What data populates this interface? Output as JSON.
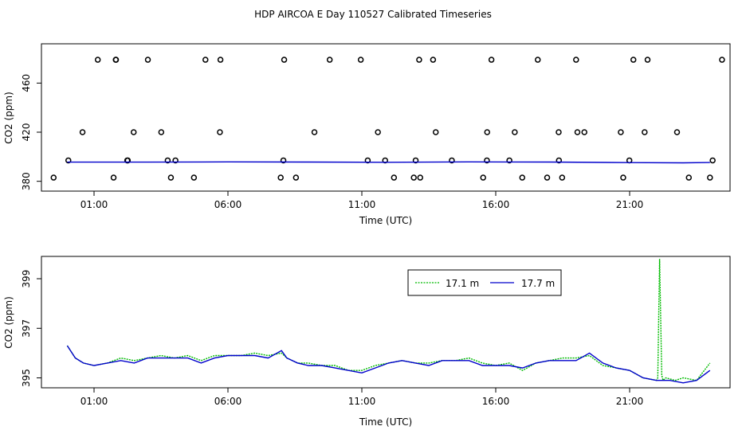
{
  "title": "HDP AIRCOA E  Day 110527  Calibrated Timeseries",
  "colors": {
    "blue": "#0000cc",
    "green": "#00bb00",
    "black": "#000000"
  },
  "chart_data": [
    {
      "type": "scatter",
      "xlabel": "Time (UTC)",
      "ylabel": "CO2 (ppm)",
      "x_unit": "hours UTC",
      "xlim": [
        0.0,
        24.0
      ],
      "ylim": [
        372,
        492
      ],
      "x_ticks": [
        1,
        6,
        11,
        16,
        21
      ],
      "x_tick_labels": [
        "01:00",
        "06:00",
        "11:00",
        "16:00",
        "21:00"
      ],
      "y_ticks": [
        380,
        420,
        460
      ],
      "y_tick_labels": [
        "380",
        "420",
        "460"
      ],
      "grid": false,
      "series": [
        {
          "kind": "points",
          "color": "#000000",
          "points": [
            [
              1.14,
              479
            ],
            [
              1.81,
              479
            ],
            [
              1.82,
              479
            ],
            [
              3.01,
              479
            ],
            [
              5.16,
              479
            ],
            [
              5.72,
              479
            ],
            [
              8.1,
              479
            ],
            [
              9.8,
              479
            ],
            [
              10.96,
              479
            ],
            [
              13.14,
              479
            ],
            [
              13.66,
              479
            ],
            [
              15.84,
              479
            ],
            [
              17.57,
              479
            ],
            [
              19.0,
              479
            ],
            [
              21.14,
              479
            ],
            [
              21.67,
              479
            ],
            [
              24.45,
              479
            ],
            [
              0.57,
              420
            ],
            [
              2.48,
              420
            ],
            [
              3.51,
              420
            ],
            [
              5.7,
              420
            ],
            [
              9.23,
              420
            ],
            [
              11.6,
              420
            ],
            [
              13.76,
              420
            ],
            [
              15.68,
              420
            ],
            [
              16.71,
              420
            ],
            [
              18.35,
              420
            ],
            [
              19.05,
              420
            ],
            [
              19.31,
              420
            ],
            [
              20.67,
              420
            ],
            [
              21.56,
              420
            ],
            [
              22.77,
              420
            ],
            [
              0.04,
              397
            ],
            [
              2.24,
              397
            ],
            [
              2.26,
              397
            ],
            [
              3.75,
              397
            ],
            [
              4.04,
              397
            ],
            [
              8.07,
              397
            ],
            [
              11.22,
              397
            ],
            [
              11.87,
              397
            ],
            [
              13.01,
              397
            ],
            [
              14.36,
              397
            ],
            [
              15.67,
              397
            ],
            [
              16.51,
              397
            ],
            [
              18.36,
              397
            ],
            [
              20.99,
              397
            ],
            [
              24.1,
              397
            ],
            [
              -0.51,
              383
            ],
            [
              1.73,
              383
            ],
            [
              3.87,
              383
            ],
            [
              4.73,
              383
            ],
            [
              7.97,
              383
            ],
            [
              8.54,
              383
            ],
            [
              12.2,
              383
            ],
            [
              12.94,
              383
            ],
            [
              13.18,
              383
            ],
            [
              15.53,
              383
            ],
            [
              16.99,
              383
            ],
            [
              17.92,
              383
            ],
            [
              18.48,
              383
            ],
            [
              20.76,
              383
            ],
            [
              23.21,
              383
            ],
            [
              24.0,
              383
            ]
          ]
        },
        {
          "kind": "line",
          "color": "#0000cc",
          "x": [
            0.0,
            3.0,
            6.0,
            9.0,
            12.0,
            15.0,
            18.0,
            21.0,
            23.0,
            24.0
          ],
          "y": [
            395.6,
            395.6,
            395.8,
            395.7,
            395.5,
            395.8,
            395.7,
            395.2,
            395.0,
            395.3
          ]
        }
      ]
    },
    {
      "type": "line",
      "xlabel": "Time (UTC)",
      "ylabel": "CO2 (ppm)",
      "x_unit": "hours UTC",
      "xlim": [
        0.0,
        24.0
      ],
      "ylim": [
        394.6,
        399.9
      ],
      "x_ticks": [
        1,
        6,
        11,
        16,
        21
      ],
      "x_tick_labels": [
        "01:00",
        "06:00",
        "11:00",
        "16:00",
        "21:00"
      ],
      "y_ticks": [
        395,
        397,
        399
      ],
      "y_tick_labels": [
        "395",
        "397",
        "399"
      ],
      "grid": false,
      "legend_position": "top-right",
      "series": [
        {
          "name": "17.1 m",
          "color": "#00bb00",
          "dashed": true,
          "x": [
            0.0,
            0.3,
            0.6,
            1.0,
            1.5,
            2.0,
            2.5,
            3.0,
            3.5,
            4.0,
            4.5,
            5.0,
            5.5,
            6.0,
            6.5,
            7.0,
            7.5,
            8.0,
            8.2,
            8.6,
            9.0,
            9.5,
            10.0,
            10.5,
            11.0,
            11.5,
            12.0,
            12.5,
            13.0,
            13.5,
            14.0,
            14.5,
            15.0,
            15.5,
            16.0,
            16.5,
            17.0,
            17.5,
            18.0,
            18.5,
            19.0,
            19.5,
            20.0,
            20.5,
            21.0,
            21.5,
            22.0,
            22.05,
            22.12,
            22.2,
            22.25,
            22.35,
            22.7,
            23.0,
            23.5,
            24.0
          ],
          "y": [
            396.3,
            395.8,
            395.6,
            395.5,
            395.6,
            395.8,
            395.7,
            395.8,
            395.9,
            395.8,
            395.9,
            395.7,
            395.9,
            395.9,
            395.9,
            396.0,
            395.9,
            396.0,
            395.8,
            395.6,
            395.6,
            395.5,
            395.5,
            395.3,
            395.3,
            395.5,
            395.6,
            395.7,
            395.6,
            395.6,
            395.7,
            395.7,
            395.8,
            395.6,
            395.5,
            395.6,
            395.3,
            395.6,
            395.7,
            395.8,
            395.8,
            395.9,
            395.5,
            395.4,
            395.3,
            395.0,
            394.9,
            395.0,
            399.8,
            395.1,
            394.9,
            395.0,
            394.9,
            395.0,
            394.9,
            395.6
          ]
        },
        {
          "name": "17.7 m",
          "color": "#0000cc",
          "dashed": false,
          "x": [
            0.0,
            0.3,
            0.6,
            1.0,
            1.5,
            2.0,
            2.5,
            3.0,
            3.5,
            4.0,
            4.5,
            5.0,
            5.5,
            6.0,
            6.5,
            7.0,
            7.5,
            8.0,
            8.2,
            8.6,
            9.0,
            9.5,
            10.0,
            10.5,
            11.0,
            11.5,
            12.0,
            12.5,
            13.0,
            13.5,
            14.0,
            14.5,
            15.0,
            15.5,
            16.0,
            16.5,
            17.0,
            17.5,
            18.0,
            18.5,
            19.0,
            19.5,
            20.0,
            20.5,
            21.0,
            21.5,
            22.0,
            22.5,
            23.0,
            23.5,
            24.0
          ],
          "y": [
            396.3,
            395.8,
            395.6,
            395.5,
            395.6,
            395.7,
            395.6,
            395.8,
            395.8,
            395.8,
            395.8,
            395.6,
            395.8,
            395.9,
            395.9,
            395.9,
            395.8,
            396.1,
            395.8,
            395.6,
            395.5,
            395.5,
            395.4,
            395.3,
            395.2,
            395.4,
            395.6,
            395.7,
            395.6,
            395.5,
            395.7,
            395.7,
            395.7,
            395.5,
            395.5,
            395.5,
            395.4,
            395.6,
            395.7,
            395.7,
            395.7,
            396.0,
            395.6,
            395.4,
            395.3,
            395.0,
            394.9,
            394.9,
            394.8,
            394.9,
            395.3
          ]
        }
      ]
    }
  ]
}
